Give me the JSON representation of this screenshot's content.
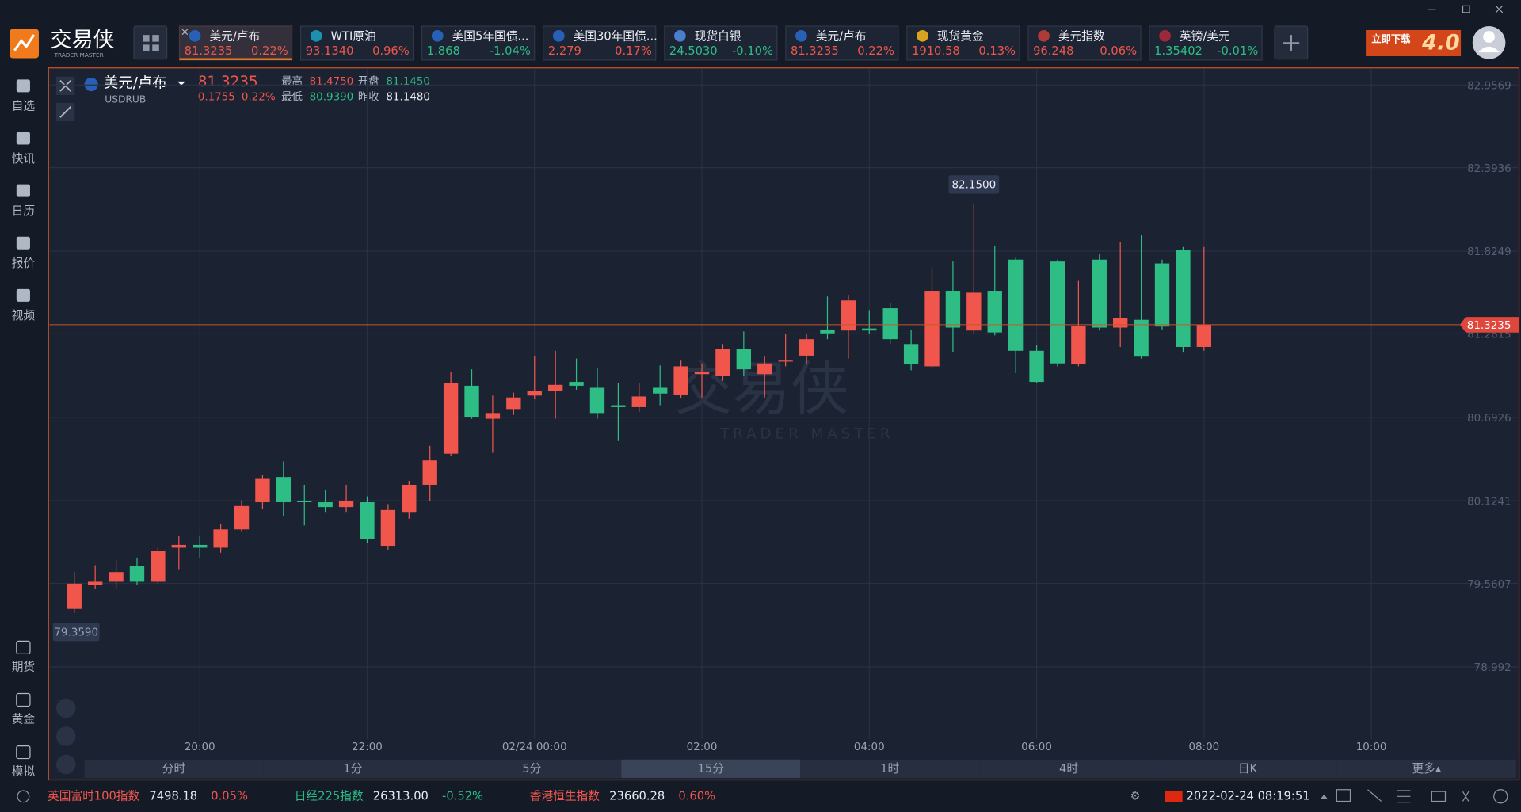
{
  "header": {
    "logo": "交易侠",
    "logo_sub": "TRADER MASTER",
    "banner": "立即下载",
    "banner_version": "4.0",
    "tickers": [
      {
        "name": "美元/卢布",
        "price": "81.3235",
        "change": "0.22%"
      },
      {
        "name": "WTI原油",
        "price": "93.1340",
        "change": "0.96%"
      },
      {
        "name": "美国5年国债...",
        "price": "1.868",
        "change": "-1.04%"
      },
      {
        "name": "美国30年国债...",
        "price": "2.279",
        "change": "0.17%"
      },
      {
        "name": "现货白银",
        "price": "24.5030",
        "change": "-0.10%"
      },
      {
        "name": "美元/卢布",
        "price": "81.3235",
        "change": "0.22%"
      },
      {
        "name": "现货黄金",
        "price": "1910.58",
        "change": "0.13%"
      },
      {
        "name": "美元指数",
        "price": "96.248",
        "change": "0.06%"
      },
      {
        "name": "英镑/美元",
        "price": "1.35402",
        "change": "-0.01%"
      }
    ]
  },
  "sidebar": {
    "top": [
      "自选",
      "快讯",
      "日历",
      "报价",
      "视频"
    ],
    "bottom": [
      "期货",
      "黄金",
      "模拟"
    ]
  },
  "quote": {
    "name": "美元/卢布",
    "code": "USDRUB",
    "price": "81.3235",
    "change": "0.1755",
    "change_pct": "0.22%",
    "stats": [
      {
        "label": "最高",
        "value": "81.4750",
        "color": "#f0564c"
      },
      {
        "label": "开盘",
        "value": "81.1450",
        "color": "#2dbd85"
      },
      {
        "label": "最低",
        "value": "80.9390",
        "color": "#2dbd85"
      },
      {
        "label": "昨收",
        "value": "81.1480",
        "color": "#e8ecf2"
      }
    ]
  },
  "chart_data": {
    "type": "candlestick",
    "watermark": "交易侠",
    "watermark_sub": "TRADER MASTER",
    "up_color": "#f0564c",
    "down_color": "#2dbd85",
    "open": [
      79.387,
      79.552,
      79.572,
      79.678,
      79.572,
      79.804,
      79.823,
      79.804,
      79.929,
      80.114,
      80.286,
      80.121,
      80.114,
      80.081,
      80.114,
      79.817,
      80.048,
      80.233,
      80.445,
      80.908,
      80.683,
      80.749,
      80.841,
      80.875,
      80.934,
      80.894,
      80.775,
      80.762,
      80.894,
      80.848,
      80.987,
      80.974,
      81.159,
      80.987,
      81.073,
      81.113,
      81.291,
      81.284,
      81.298,
      81.436,
      81.192,
      81.04,
      81.555,
      81.284,
      81.555,
      81.767,
      81.146,
      81.754,
      81.053,
      81.767,
      81.304,
      81.357,
      81.741,
      81.833,
      81.172
    ],
    "high": [
      79.638,
      79.685,
      79.718,
      79.737,
      79.804,
      79.883,
      79.889,
      79.969,
      80.127,
      80.299,
      80.392,
      80.233,
      80.2,
      80.233,
      80.154,
      80.101,
      80.26,
      80.498,
      81.0,
      81.02,
      80.841,
      80.861,
      81.113,
      81.146,
      81.093,
      81.027,
      80.927,
      80.927,
      81.046,
      81.079,
      81.06,
      81.192,
      81.278,
      81.106,
      81.258,
      81.258,
      81.516,
      81.522,
      81.423,
      81.47,
      81.291,
      81.714,
      81.754,
      82.15,
      81.86,
      81.78,
      81.185,
      81.767,
      81.622,
      81.807,
      81.886,
      81.932,
      81.767,
      81.853,
      81.853
    ],
    "low": [
      79.359,
      79.526,
      79.526,
      79.552,
      79.559,
      79.658,
      79.737,
      79.77,
      79.916,
      80.068,
      80.022,
      79.956,
      80.048,
      80.048,
      79.837,
      79.79,
      80.002,
      80.121,
      80.432,
      80.683,
      80.451,
      80.709,
      80.815,
      80.683,
      80.881,
      80.683,
      80.531,
      80.729,
      80.775,
      80.822,
      80.828,
      80.941,
      80.974,
      80.828,
      81.04,
      81.06,
      81.225,
      81.093,
      81.258,
      81.192,
      81.013,
      81.027,
      81.139,
      81.258,
      81.251,
      80.994,
      80.927,
      81.04,
      81.04,
      81.284,
      81.172,
      81.093,
      81.291,
      81.139,
      81.146
    ],
    "close": [
      79.559,
      79.572,
      79.638,
      79.572,
      79.784,
      79.823,
      79.804,
      79.929,
      80.088,
      80.273,
      80.114,
      80.114,
      80.081,
      80.121,
      79.863,
      80.061,
      80.233,
      80.399,
      80.927,
      80.696,
      80.722,
      80.828,
      80.875,
      80.914,
      80.908,
      80.722,
      80.762,
      80.835,
      80.855,
      81.04,
      81.0,
      81.159,
      81.02,
      81.06,
      81.079,
      81.225,
      81.265,
      81.489,
      81.284,
      81.225,
      81.053,
      81.555,
      81.304,
      81.542,
      81.271,
      81.146,
      80.934,
      81.06,
      81.317,
      81.304,
      81.37,
      81.106,
      81.311,
      81.172,
      81.3235
    ],
    "high_label": "82.1500",
    "low_label": "79.3590",
    "last_label": "81.3235",
    "xlim": [
      -1,
      66
    ],
    "xticks": [
      {
        "value": 6,
        "label": "20:00"
      },
      {
        "value": 14,
        "label": "22:00"
      },
      {
        "value": 22,
        "label": "02/24 00:00"
      },
      {
        "value": 30,
        "label": "02:00"
      },
      {
        "value": 38,
        "label": "04:00"
      },
      {
        "value": 46,
        "label": "06:00"
      },
      {
        "value": 54,
        "label": "08:00"
      },
      {
        "value": 62,
        "label": "10:00"
      }
    ],
    "ylim": [
      78.5,
      83.06
    ],
    "yticks": [
      82.9569,
      82.3936,
      81.8249,
      81.2615,
      80.6926,
      80.1241,
      79.5607,
      78.992
    ],
    "grid": true
  },
  "periods": {
    "items": [
      "分时",
      "1分",
      "5分",
      "15分",
      "1时",
      "4时",
      "日K",
      "更多▴"
    ],
    "selected": 3
  },
  "footer": {
    "markets": [
      {
        "name": "英国富时100指数",
        "price": "7498.18",
        "change": "0.05%"
      },
      {
        "name": "日经225指数",
        "price": "26313.00",
        "change": "-0.52%"
      },
      {
        "name": "香港恒生指数",
        "price": "23660.28",
        "change": "0.60%"
      }
    ],
    "datetime": "2022-02-24 08:19:51"
  }
}
